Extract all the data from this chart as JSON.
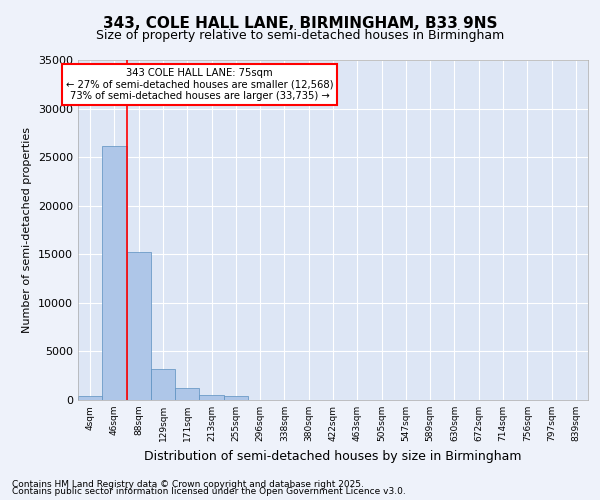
{
  "title1": "343, COLE HALL LANE, BIRMINGHAM, B33 9NS",
  "title2": "Size of property relative to semi-detached houses in Birmingham",
  "xlabel": "Distribution of semi-detached houses by size in Birmingham",
  "ylabel": "Number of semi-detached properties",
  "categories": [
    "4sqm",
    "46sqm",
    "88sqm",
    "129sqm",
    "171sqm",
    "213sqm",
    "255sqm",
    "296sqm",
    "338sqm",
    "380sqm",
    "422sqm",
    "463sqm",
    "505sqm",
    "547sqm",
    "589sqm",
    "630sqm",
    "672sqm",
    "714sqm",
    "756sqm",
    "797sqm",
    "839sqm"
  ],
  "values": [
    400,
    26100,
    15200,
    3200,
    1200,
    500,
    400,
    0,
    0,
    0,
    0,
    0,
    0,
    0,
    0,
    0,
    0,
    0,
    0,
    0,
    0
  ],
  "bar_color": "#aec6e8",
  "bar_edge_color": "#5a8fc0",
  "red_line_x": 1.5,
  "red_line_label": "343 COLE HALL LANE: 75sqm",
  "annotation_smaller": "← 27% of semi-detached houses are smaller (12,568)",
  "annotation_larger": "73% of semi-detached houses are larger (33,735) →",
  "ylim": [
    0,
    35000
  ],
  "yticks": [
    0,
    5000,
    10000,
    15000,
    20000,
    25000,
    30000,
    35000
  ],
  "background_color": "#eef2fa",
  "plot_bg_color": "#dde6f5",
  "grid_color": "#ffffff",
  "footer1": "Contains HM Land Registry data © Crown copyright and database right 2025.",
  "footer2": "Contains public sector information licensed under the Open Government Licence v3.0."
}
